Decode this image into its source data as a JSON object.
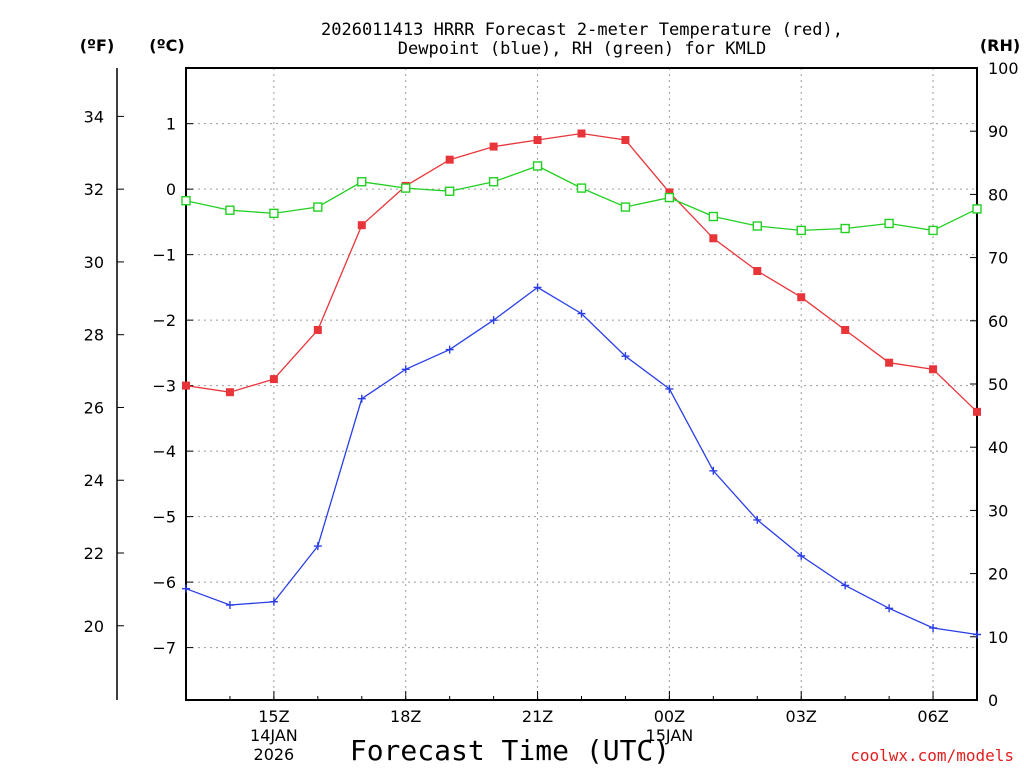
{
  "chart_data": {
    "type": "line",
    "title_line1": "2026011413 HRRR Forecast 2-meter Temperature (red),",
    "title_line2": "Dewpoint (blue), RH (green) for KMLD",
    "xlabel": "Forecast Time (UTC)",
    "credit": "coolwx.com/models",
    "unit_f": "(ºF)",
    "unit_c": "(ºC)",
    "unit_rh": "(RH)",
    "x": [
      13,
      14,
      15,
      16,
      17,
      18,
      19,
      20,
      21,
      22,
      23,
      24,
      25,
      26,
      27,
      28,
      29,
      30,
      31
    ],
    "xlim": [
      13,
      31
    ],
    "x_ticks": [
      {
        "x": 15,
        "label": "15Z",
        "sub1": "14JAN",
        "sub2": "2026"
      },
      {
        "x": 18,
        "label": "18Z",
        "sub1": "",
        "sub2": ""
      },
      {
        "x": 21,
        "label": "21Z",
        "sub1": "",
        "sub2": ""
      },
      {
        "x": 24,
        "label": "00Z",
        "sub1": "15JAN",
        "sub2": ""
      },
      {
        "x": 27,
        "label": "03Z",
        "sub1": "",
        "sub2": ""
      },
      {
        "x": 30,
        "label": "06Z",
        "sub1": "",
        "sub2": ""
      }
    ],
    "c_ticks": [
      "1",
      "0",
      "−1",
      "−2",
      "−3",
      "−4",
      "−5",
      "−6",
      "−7"
    ],
    "f_ticks": [
      "34",
      "32",
      "30",
      "28",
      "26",
      "24",
      "22",
      "20"
    ],
    "rh_ticks": [
      "0",
      "10",
      "20",
      "30",
      "40",
      "50",
      "60",
      "70",
      "80",
      "90",
      "100"
    ],
    "ylim_c": [
      -7.8,
      1.85
    ],
    "ylim_rh": [
      0,
      100
    ],
    "series": [
      {
        "name": "Temperature",
        "axis": "C",
        "color": "#e8353a",
        "marker": "filled-square",
        "values": [
          -3.0,
          -3.1,
          -2.9,
          -2.15,
          -0.55,
          0.05,
          0.45,
          0.65,
          0.75,
          0.85,
          0.75,
          -0.05,
          -0.75,
          -1.25,
          -1.65,
          -2.15,
          -2.65,
          -2.75,
          -3.4
        ]
      },
      {
        "name": "Dewpoint",
        "axis": "C",
        "color": "#2a3ee8",
        "marker": "plus",
        "values": [
          -6.1,
          -6.35,
          -6.3,
          -5.45,
          -3.2,
          -2.75,
          -2.45,
          -2.0,
          -1.5,
          -1.9,
          -2.55,
          -3.05,
          -4.3,
          -5.05,
          -5.6,
          -6.05,
          -6.4,
          -6.7,
          -6.8
        ]
      },
      {
        "name": "RH",
        "axis": "RH",
        "color": "#22d022",
        "marker": "open-square",
        "values": [
          79,
          77.5,
          77,
          78,
          82,
          81,
          80.5,
          82,
          84.5,
          81,
          78,
          79.5,
          76.5,
          75,
          74.3,
          74.6,
          75.4,
          74.3,
          77.7
        ]
      }
    ]
  }
}
